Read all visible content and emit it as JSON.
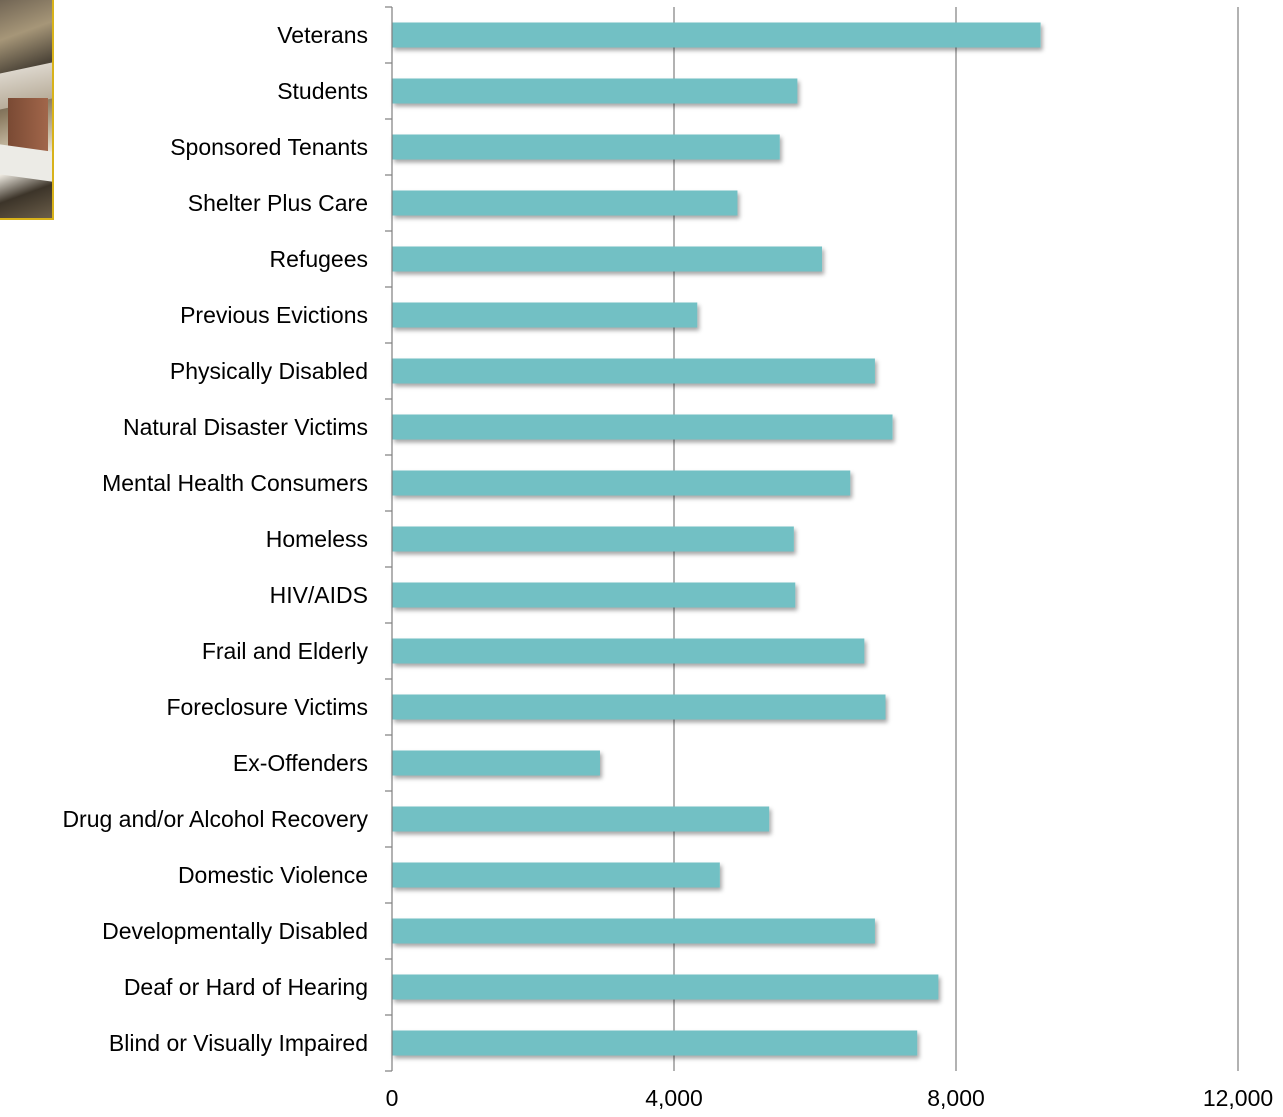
{
  "chart_data": {
    "type": "bar",
    "orientation": "horizontal",
    "categories": [
      "Veterans",
      "Students",
      "Sponsored Tenants",
      "Shelter Plus Care",
      "Refugees",
      "Previous Evictions",
      "Physically Disabled",
      "Natural Disaster Victims",
      "Mental Health Consumers",
      "Homeless",
      "HIV/AIDS",
      "Frail and Elderly",
      "Foreclosure Victims",
      "Ex-Offenders",
      "Drug and/or Alcohol Recovery",
      "Domestic Violence",
      "Developmentally Disabled",
      "Deaf or Hard of Hearing",
      "Blind or Visually Impaired"
    ],
    "values": [
      9200,
      5750,
      5500,
      4900,
      6100,
      4330,
      6850,
      7100,
      6500,
      5700,
      5720,
      6700,
      7000,
      2950,
      5350,
      4650,
      6850,
      7750,
      7450
    ],
    "x_ticks": [
      "0",
      "4,000",
      "8,000",
      "12,000"
    ],
    "xlim": [
      0,
      12000
    ],
    "grid": "vertical major gridlines",
    "legend": "none",
    "bar_color": "#72c0c4",
    "title": "",
    "xlabel": "",
    "ylabel": ""
  }
}
